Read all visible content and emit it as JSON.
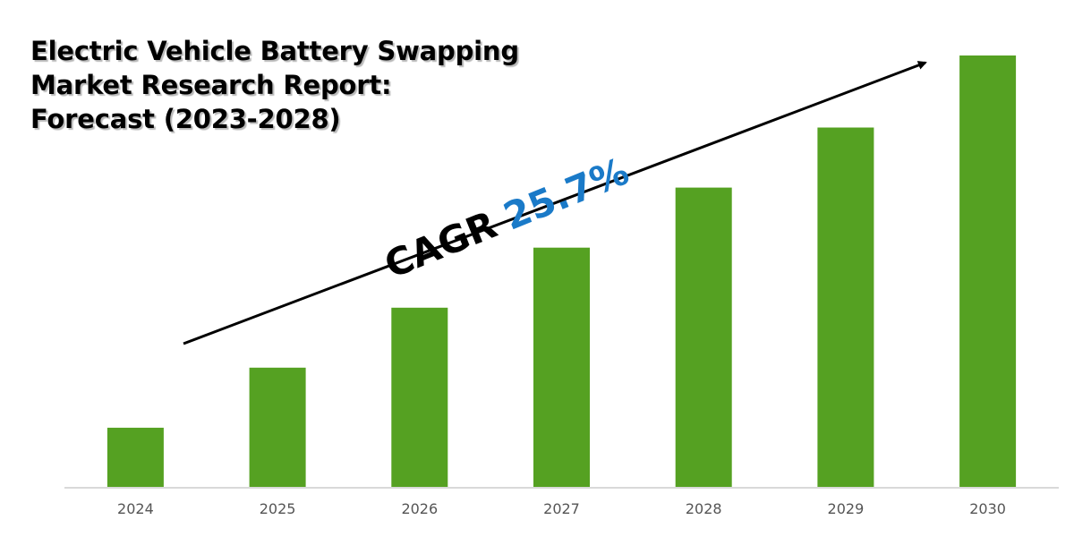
{
  "colors": {
    "bar": "#55a122",
    "axis": "#d9d9d9",
    "tick_text": "#555555",
    "arrow": "#000000",
    "cagr_value": "#1a7ac8"
  },
  "chart_data": {
    "type": "bar",
    "title_lines": [
      "Electric Vehicle Battery Swapping",
      "Market Research Report:",
      "Forecast (2023-2028)"
    ],
    "categories": [
      "2024",
      "2025",
      "2026",
      "2027",
      "2028",
      "2029",
      "2030"
    ],
    "values": [
      1.0,
      2.0,
      3.0,
      4.0,
      5.0,
      6.0,
      7.2
    ],
    "ylim": [
      0,
      7.2
    ],
    "xlabel": "",
    "ylabel": "",
    "annotation": {
      "label": "CAGR",
      "value": "25.7%"
    },
    "grid": false,
    "legend": "none"
  }
}
